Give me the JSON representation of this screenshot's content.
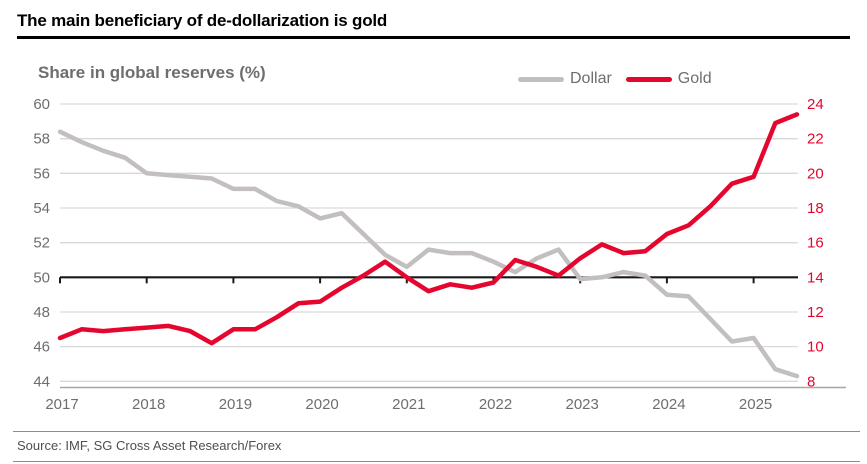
{
  "title": "The main beneficiary of de-dollarization is gold",
  "subtitle": "Share in global reserves (%)",
  "source": "Source: IMF, SG Cross Asset Research/Forex",
  "colors": {
    "dollar_line": "#c3bfbf",
    "gold_line": "#e4062e",
    "gridline": "#d9d9d9",
    "baseline": "#1a1a1a",
    "axis_line": "#a6a6a6",
    "axis_label_gray": "#6e6e6e",
    "axis_label_red": "#e4062e",
    "title_black": "#000000"
  },
  "legend": [
    {
      "label": "Dollar",
      "color": "#c3bfbf"
    },
    {
      "label": "Gold",
      "color": "#e4062e"
    }
  ],
  "chart_data": {
    "type": "line",
    "title": "The main beneficiary of de-dollarization is gold",
    "subtitle": "Share in global reserves (%)",
    "grid": true,
    "legend_position": "top-right",
    "x_tick_labels": [
      "2017",
      "2018",
      "2019",
      "2020",
      "2021",
      "2022",
      "2023",
      "2024",
      "2025"
    ],
    "categories": [
      "2017Q1",
      "2017Q2",
      "2017Q3",
      "2017Q4",
      "2018Q1",
      "2018Q2",
      "2018Q3",
      "2018Q4",
      "2019Q1",
      "2019Q2",
      "2019Q3",
      "2019Q4",
      "2020Q1",
      "2020Q2",
      "2020Q3",
      "2020Q4",
      "2021Q1",
      "2021Q2",
      "2021Q3",
      "2021Q4",
      "2022Q1",
      "2022Q2",
      "2022Q3",
      "2022Q4",
      "2023Q1",
      "2023Q2",
      "2023Q3",
      "2023Q4",
      "2024Q1",
      "2024Q2",
      "2024Q3",
      "2024Q4",
      "2025Q1",
      "2025Q2",
      "2025Q3"
    ],
    "left_axis": {
      "label_for": "Dollar",
      "min": 44,
      "max": 60,
      "step": 2,
      "ticks": [
        60,
        58,
        56,
        54,
        52,
        50,
        48,
        46,
        44
      ]
    },
    "right_axis": {
      "label_for": "Gold",
      "min": 8,
      "max": 24,
      "step": 2,
      "ticks": [
        24,
        22,
        20,
        18,
        16,
        14,
        12,
        10,
        8
      ]
    },
    "baseline_left_value": 50,
    "series": [
      {
        "name": "Dollar",
        "axis": "left",
        "values": [
          58.4,
          57.8,
          57.3,
          56.9,
          56.0,
          55.9,
          55.8,
          55.7,
          55.1,
          55.1,
          54.4,
          54.1,
          53.4,
          53.7,
          52.5,
          51.3,
          50.6,
          51.6,
          51.4,
          51.4,
          50.9,
          50.3,
          51.1,
          51.6,
          49.9,
          50.0,
          50.3,
          50.1,
          49.0,
          48.9,
          47.6,
          46.3,
          46.5,
          44.7,
          44.3
        ]
      },
      {
        "name": "Gold",
        "axis": "right",
        "values": [
          10.5,
          11.0,
          10.9,
          11.0,
          11.1,
          11.2,
          10.9,
          10.2,
          11.0,
          11.0,
          11.7,
          12.5,
          12.6,
          13.4,
          14.1,
          14.9,
          14.0,
          13.2,
          13.6,
          13.4,
          13.7,
          15.0,
          14.6,
          14.1,
          15.1,
          15.9,
          15.4,
          15.5,
          16.5,
          17.0,
          18.1,
          19.4,
          19.8,
          22.9,
          23.4
        ]
      }
    ]
  }
}
